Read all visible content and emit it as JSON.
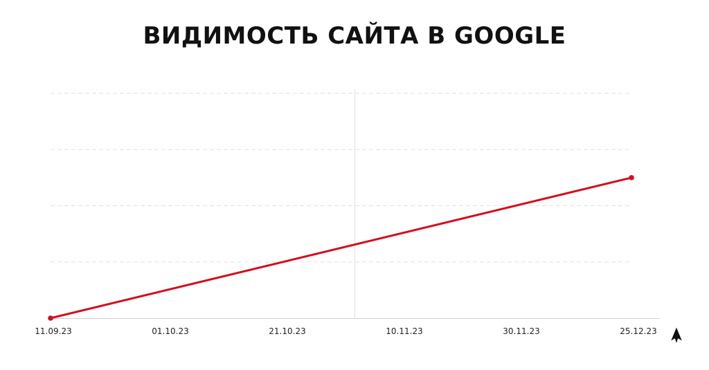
{
  "chart_data": {
    "type": "line",
    "title": "ВИДИМОСТЬ САЙТА В GOOGLE",
    "xlabel": "",
    "ylabel": "",
    "x_tick_labels": [
      "11.09.23",
      "01.10.23",
      "21.10.23",
      "10.11.23",
      "30.11.23",
      "25.12.23"
    ],
    "series": [
      {
        "color": "#d20f1e",
        "points": [
          {
            "x": "11.09.23",
            "y": 0
          },
          {
            "x": "25.12.23",
            "y": 2.5
          }
        ]
      }
    ],
    "ylim": [
      0,
      4
    ],
    "grid": {
      "horizontal": true,
      "style": "dashed"
    },
    "vertical_guide_at": "05.11.23"
  },
  "icons": {
    "cursor": "arrow-cursor-icon"
  }
}
